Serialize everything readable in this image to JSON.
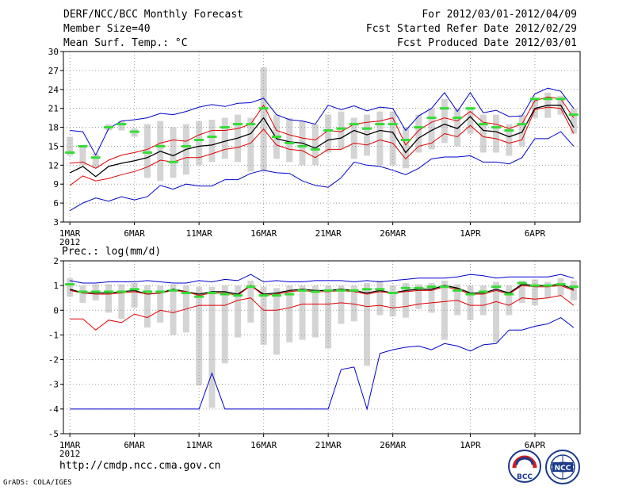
{
  "header": {
    "title": "DERF/NCC/BCC Monthly Forecast",
    "member_size": "Member Size=40",
    "variable": "Mean Surf. Temp.: °C",
    "forecast_period": "For 2012/03/01-2012/04/09",
    "start_date": "Fcst Started Refer Date 2012/02/29",
    "produced_date": "Fcst Produced Date 2012/03/01"
  },
  "footer": {
    "url": "http://cmdp.ncc.cma.gov.cn",
    "credit": "GrADS: COLA/IGES",
    "logo_left": "BCC",
    "logo_right": "NCC"
  },
  "colors": {
    "mean": "#000000",
    "percentile": "#e00000",
    "extreme": "#0000cc",
    "median": "#33dd33",
    "box": "#d4d4d4",
    "grid": "#9a9a9a"
  },
  "chart_data": [
    {
      "type": "line",
      "title": "Mean Surf. Temp.: °C",
      "year_label": "2012",
      "ylim": [
        3,
        30
      ],
      "yticks": [
        3,
        6,
        9,
        12,
        15,
        18,
        21,
        24,
        27,
        30
      ],
      "xlim": [
        0.5,
        40.5
      ],
      "x": [
        1,
        2,
        3,
        4,
        5,
        6,
        7,
        8,
        9,
        10,
        11,
        12,
        13,
        14,
        15,
        16,
        17,
        18,
        19,
        20,
        21,
        22,
        23,
        24,
        25,
        26,
        27,
        28,
        29,
        30,
        31,
        32,
        33,
        34,
        35,
        36,
        37,
        38,
        39,
        40
      ],
      "xticks": [
        {
          "label": "1MAR",
          "x": 1
        },
        {
          "label": "6MAR",
          "x": 6
        },
        {
          "label": "11MAR",
          "x": 11
        },
        {
          "label": "16MAR",
          "x": 16
        },
        {
          "label": "21MAR",
          "x": 21
        },
        {
          "label": "26MAR",
          "x": 26
        },
        {
          "label": "1APR",
          "x": 32
        },
        {
          "label": "6APR",
          "x": 37
        }
      ],
      "grid": true,
      "series": [
        {
          "name": "maximum",
          "style": "extreme",
          "values": [
            17.5,
            17.3,
            13.6,
            17.8,
            19,
            19.2,
            19.5,
            20.2,
            20,
            20.5,
            21.2,
            21.6,
            21.3,
            21.8,
            21.9,
            22.6,
            20,
            19.2,
            19,
            18.5,
            21.5,
            20.8,
            21.4,
            20.6,
            21.2,
            21,
            17.5,
            19.8,
            21,
            23.5,
            20.5,
            23.5,
            20.3,
            20.7,
            19.7,
            19.8,
            23.3,
            24.2,
            23.7,
            21
          ]
        },
        {
          "name": "percentile_high",
          "style": "percentile",
          "values": [
            12.3,
            12.5,
            11.5,
            12.8,
            13.6,
            14,
            14.5,
            15.5,
            16,
            15.8,
            16.8,
            17.5,
            17.5,
            17.8,
            18.5,
            21.5,
            17.5,
            16.8,
            16.3,
            16,
            17.5,
            17.3,
            18.5,
            18.8,
            19,
            19.5,
            15.2,
            17.5,
            18.8,
            19.5,
            19,
            20.5,
            18.8,
            18.5,
            17.8,
            18.5,
            22.2,
            22.8,
            22.5,
            19.5
          ]
        },
        {
          "name": "mean",
          "style": "mean",
          "values": [
            10.8,
            11.8,
            10.2,
            11.8,
            12.3,
            12.7,
            13.2,
            14.2,
            13.5,
            14.5,
            15,
            15.2,
            15.8,
            16.3,
            17,
            19.5,
            16.2,
            15.7,
            15.5,
            14.7,
            16,
            16.3,
            17.5,
            16.8,
            17.5,
            17.2,
            14,
            16.3,
            17.5,
            18.5,
            17.8,
            19.7,
            17.5,
            17.3,
            16.5,
            17.2,
            21,
            21.5,
            21.5,
            18
          ]
        },
        {
          "name": "percentile_low",
          "style": "percentile",
          "values": [
            8.8,
            10.3,
            9.5,
            9.9,
            10.5,
            11,
            11.7,
            12.8,
            12.5,
            13.2,
            13.2,
            13.8,
            14.5,
            14.8,
            15.5,
            17.7,
            15.2,
            14.5,
            14.3,
            13.2,
            14.5,
            14.5,
            15.5,
            15.2,
            16,
            15.5,
            13,
            15,
            15.5,
            17,
            16.5,
            18.3,
            16.5,
            16.2,
            15.5,
            16,
            20.8,
            21.2,
            21,
            17
          ]
        },
        {
          "name": "minimum",
          "style": "extreme",
          "values": [
            4.8,
            6,
            6.8,
            6.3,
            7,
            6.5,
            7,
            8.8,
            8.2,
            9,
            8.7,
            8.7,
            9.7,
            9.7,
            10.7,
            11.2,
            10.8,
            10.7,
            9.5,
            8.8,
            8.5,
            10,
            12.5,
            12,
            11.8,
            11.2,
            10.5,
            11.5,
            13,
            13.3,
            13.3,
            13.5,
            12.5,
            12.5,
            12.2,
            13.2,
            16.2,
            16.2,
            17.3,
            15
          ]
        },
        {
          "name": "median",
          "style": "median",
          "values": [
            14,
            15,
            13.2,
            18,
            18.5,
            17.3,
            14,
            15,
            12.5,
            15,
            16,
            16.5,
            18,
            18.5,
            18.5,
            21,
            16.5,
            15.5,
            15,
            14.5,
            17.5,
            17.8,
            18.5,
            17.8,
            18.5,
            18.5,
            16,
            18,
            19.5,
            21,
            19.5,
            21,
            18.5,
            18,
            17.5,
            18.5,
            22.5,
            22.5,
            22.5,
            20
          ]
        },
        {
          "name": "box_top",
          "style": "box",
          "values": [
            16.5,
            15,
            13.8,
            18.5,
            19,
            17.8,
            18.5,
            19,
            18,
            18.5,
            19,
            19.2,
            19.5,
            20,
            19.5,
            27.5,
            20,
            19.5,
            19,
            18.5,
            20,
            20.5,
            19.5,
            20,
            20.5,
            20.5,
            18,
            20,
            21,
            22.5,
            21,
            21,
            20,
            20,
            18.5,
            20,
            22.5,
            23.5,
            23,
            21
          ]
        },
        {
          "name": "box_bottom",
          "style": "box",
          "values": [
            13.5,
            12,
            11.5,
            17.5,
            17.5,
            16.5,
            10,
            9.5,
            10,
            10.5,
            12,
            12.5,
            13,
            12.5,
            11,
            11,
            13,
            12.5,
            12,
            12,
            14,
            14.5,
            13,
            13.5,
            12,
            12,
            11.5,
            14,
            14.5,
            15.5,
            15,
            17,
            14,
            14,
            13.5,
            15,
            19.5,
            19.5,
            20,
            17
          ]
        }
      ]
    },
    {
      "type": "line",
      "title": "Prec.: log(mm/d)",
      "year_label": "2012",
      "ylim": [
        -5,
        2
      ],
      "yticks": [
        -5,
        -4,
        -3,
        -2,
        -1,
        0,
        1,
        2
      ],
      "xlim": [
        0.5,
        40.5
      ],
      "x": [
        1,
        2,
        3,
        4,
        5,
        6,
        7,
        8,
        9,
        10,
        11,
        12,
        13,
        14,
        15,
        16,
        17,
        18,
        19,
        20,
        21,
        22,
        23,
        24,
        25,
        26,
        27,
        28,
        29,
        30,
        31,
        32,
        33,
        34,
        35,
        36,
        37,
        38,
        39,
        40
      ],
      "xticks": [
        {
          "label": "1MAR",
          "x": 1
        },
        {
          "label": "6MAR",
          "x": 6
        },
        {
          "label": "11MAR",
          "x": 11
        },
        {
          "label": "16MAR",
          "x": 16
        },
        {
          "label": "21MAR",
          "x": 21
        },
        {
          "label": "26MAR",
          "x": 26
        },
        {
          "label": "1APR",
          "x": 32
        },
        {
          "label": "6APR",
          "x": 37
        }
      ],
      "grid": true,
      "series": [
        {
          "name": "maximum",
          "style": "extreme",
          "values": [
            1.2,
            1.1,
            1.1,
            1.15,
            1.15,
            1.15,
            1.2,
            1.15,
            1.1,
            1.1,
            1.2,
            1.15,
            1.25,
            1.2,
            1.45,
            1.15,
            1.2,
            1.15,
            1.15,
            1.2,
            1.2,
            1.2,
            1.15,
            1.2,
            1.15,
            1.2,
            1.25,
            1.3,
            1.3,
            1.3,
            1.35,
            1.45,
            1.4,
            1.3,
            1.35,
            1.35,
            1.35,
            1.35,
            1.45,
            1.3
          ]
        },
        {
          "name": "mean",
          "style": "mean",
          "values": [
            0.85,
            0.7,
            0.7,
            0.7,
            0.75,
            0.8,
            0.65,
            0.7,
            0.85,
            0.75,
            0.65,
            0.75,
            0.75,
            0.65,
            1,
            0.65,
            0.7,
            0.8,
            0.85,
            0.8,
            0.8,
            0.85,
            0.8,
            0.7,
            0.8,
            0.7,
            0.8,
            0.85,
            0.85,
            1,
            0.9,
            0.7,
            0.7,
            0.85,
            0.7,
            1.05,
            1,
            1,
            1.05,
            0.85
          ]
        },
        {
          "name": "percentile_high",
          "style": "percentile",
          "values": [
            0.8,
            0.7,
            0.65,
            0.65,
            0.7,
            0.75,
            0.65,
            0.7,
            0.8,
            0.75,
            0.6,
            0.7,
            0.7,
            0.6,
            1,
            0.6,
            0.65,
            0.75,
            0.8,
            0.75,
            0.75,
            0.8,
            0.75,
            0.65,
            0.75,
            0.7,
            0.75,
            0.8,
            0.8,
            0.95,
            0.85,
            0.65,
            0.65,
            0.8,
            0.65,
            1,
            0.95,
            0.95,
            1,
            0.8
          ]
        },
        {
          "name": "percentile_low",
          "style": "percentile",
          "values": [
            -0.35,
            -0.35,
            -0.8,
            -0.4,
            -0.5,
            -0.15,
            -0.3,
            0,
            -0.1,
            0.05,
            0.2,
            0.2,
            0.2,
            0.4,
            0.5,
            0,
            0,
            0.1,
            0.25,
            0.25,
            0.25,
            0.3,
            0.25,
            0.15,
            0.2,
            0.1,
            0.15,
            0.25,
            0.3,
            0.35,
            0.4,
            0.2,
            0.2,
            0.35,
            0.2,
            0.5,
            0.45,
            0.5,
            0.6,
            0.2
          ]
        },
        {
          "name": "minimum",
          "style": "extreme",
          "values": [
            -4,
            -4,
            -4,
            -4,
            -4,
            -4,
            -4,
            -4,
            -4,
            -4,
            -4,
            -2.55,
            -4,
            -4,
            -4,
            -4,
            -4,
            -4,
            -4,
            -4,
            -4,
            -2.4,
            -2.3,
            -4,
            -1.75,
            -1.6,
            -1.5,
            -1.45,
            -1.6,
            -1.35,
            -1.45,
            -1.65,
            -1.4,
            -1.35,
            -0.8,
            -0.8,
            -0.65,
            -0.55,
            -0.3,
            -0.7
          ]
        },
        {
          "name": "median",
          "style": "median",
          "values": [
            1.05,
            0.75,
            0.75,
            0.75,
            0.75,
            0.85,
            0.75,
            0.75,
            0.8,
            0.7,
            0.55,
            0.7,
            0.65,
            0.6,
            0.95,
            0.6,
            0.6,
            0.65,
            0.8,
            0.75,
            0.8,
            0.8,
            0.8,
            0.85,
            0.85,
            0.7,
            0.9,
            0.9,
            0.95,
            0.95,
            0.8,
            0.65,
            0.75,
            0.95,
            0.65,
            1.1,
            1,
            1,
            1.05,
            0.95
          ]
        },
        {
          "name": "box_top",
          "style": "box",
          "values": [
            1.3,
            1,
            1.05,
            1.05,
            1.05,
            1.1,
            1,
            1,
            1.05,
            1,
            0.95,
            0.95,
            1,
            1,
            1.2,
            0.95,
            0.9,
            1,
            1,
            1,
            1,
            1,
            1,
            1.1,
            1.2,
            1,
            1.1,
            1.05,
            1.1,
            1.2,
            1.05,
            1,
            1,
            1.15,
            1,
            1.2,
            1.25,
            1.15,
            1.3,
            1.2
          ]
        },
        {
          "name": "box_bottom",
          "style": "box",
          "values": [
            0.55,
            0.3,
            0.4,
            -0.1,
            -0.35,
            0.1,
            -0.7,
            -0.5,
            -1,
            -0.9,
            -3.05,
            -3.95,
            -2.15,
            -1.1,
            -0.5,
            -1.4,
            -1.8,
            -1.3,
            -1.2,
            -1.1,
            -1.55,
            -0.55,
            -0.45,
            -2.25,
            -0.2,
            -0.25,
            -0.3,
            0.05,
            -0.1,
            -1.2,
            -0.2,
            -0.4,
            -0.2,
            -1.3,
            -0.2,
            0.3,
            0.2,
            0.5,
            0.6,
            0.4
          ]
        }
      ]
    }
  ]
}
